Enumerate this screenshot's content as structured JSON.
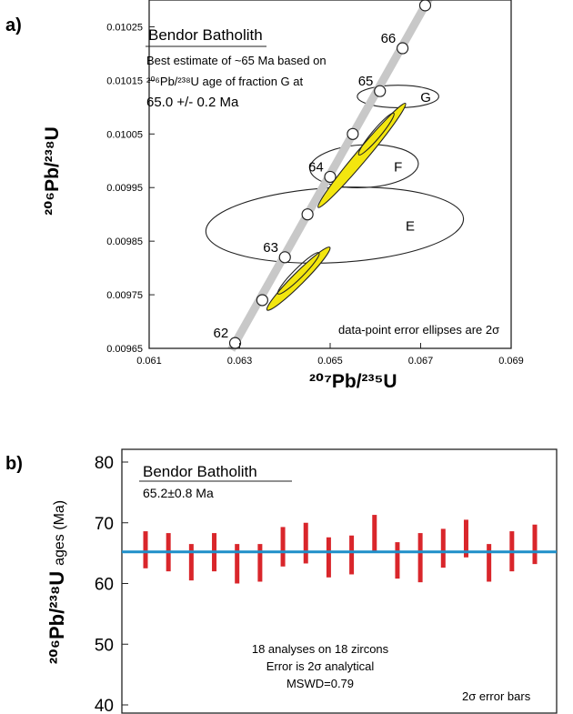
{
  "chart_data": [
    {
      "type": "scatter",
      "panel_label": "a)",
      "title": "Bendor Batholith",
      "annotation_lines": [
        "Best estimate of ~65 Ma based on",
        "²⁰⁶Pb/²³⁸U age of fraction G at",
        "65.0 +/- 0.2 Ma"
      ],
      "note": "data-point error ellipses are 2σ",
      "xlabel": "²⁰⁷Pb/²³⁵U",
      "ylabel": "²⁰⁶Pb/²³⁸U",
      "xlim": [
        0.061,
        0.069
      ],
      "ylim": [
        0.00965,
        0.0103
      ],
      "x_ticks": [
        0.061,
        0.063,
        0.065,
        0.067,
        0.069
      ],
      "x_tick_labels": [
        "0.061",
        "0.063",
        "0.065",
        "0.067",
        "0.069"
      ],
      "y_ticks": [
        0.00965,
        0.00975,
        0.00985,
        0.00995,
        0.01005,
        0.01015,
        0.01025
      ],
      "y_tick_labels": [
        "0.00965",
        "0.00975",
        "0.00985",
        "0.00995",
        "0.01005",
        "0.01015",
        "0.01025"
      ],
      "concordia_color": "#c8c8c8",
      "concordia_points": [
        {
          "x": 0.0629,
          "y": 0.00966,
          "label": "62"
        },
        {
          "x": 0.0635,
          "y": 0.00974,
          "label": ""
        },
        {
          "x": 0.064,
          "y": 0.00982,
          "label": "63"
        },
        {
          "x": 0.0645,
          "y": 0.0099,
          "label": ""
        },
        {
          "x": 0.065,
          "y": 0.00997,
          "label": "64"
        },
        {
          "x": 0.0655,
          "y": 0.01005,
          "label": ""
        },
        {
          "x": 0.0661,
          "y": 0.01013,
          "label": "65"
        },
        {
          "x": 0.0666,
          "y": 0.01021,
          "label": "66"
        },
        {
          "x": 0.0671,
          "y": 0.01029,
          "label": ""
        }
      ],
      "ellipses": [
        {
          "label": "G",
          "cx": 0.0665,
          "cy": 0.01012,
          "rx": 0.0009,
          "ry": 2.1e-05,
          "angle": 0,
          "fill": "none"
        },
        {
          "label": "F",
          "cx": 0.06575,
          "cy": 0.00999,
          "rx": 0.0012,
          "ry": 4e-05,
          "angle": -3,
          "fill": "none"
        },
        {
          "label": "E",
          "cx": 0.0651,
          "cy": 0.00988,
          "rx": 0.00285,
          "ry": 7e-05,
          "angle": -3,
          "fill": "none"
        },
        {
          "label": "",
          "cx": 0.0657,
          "cy": 0.01001,
          "rx": 0.0015,
          "ry": 1.1e-05,
          "angle": -50,
          "fill": "#f3e60f"
        },
        {
          "label": "",
          "cx": 0.0643,
          "cy": 0.00978,
          "rx": 0.00098,
          "ry": 1.1e-05,
          "angle": -45,
          "fill": "#f3e60f"
        },
        {
          "label": "",
          "cx": 0.0643,
          "cy": 0.00979,
          "rx": 0.00064,
          "ry": 9e-06,
          "angle": -45,
          "fill": "none"
        },
        {
          "label": "",
          "cx": 0.06602,
          "cy": 0.01005,
          "rx": 0.0006,
          "ry": 8e-06,
          "angle": -50,
          "fill": "none"
        }
      ]
    },
    {
      "type": "bar",
      "panel_label": "b)",
      "title": "Bendor Batholith",
      "subtitle": "65.2±0.8 Ma",
      "notes": [
        "18 analyses on 18 zircons",
        "Error is 2σ analytical",
        "MSWD=0.79"
      ],
      "error_bar_note": "2σ error bars",
      "ylabel_main": "²⁰⁶Pb/²³⁸U",
      "ylabel_suffix": "ages (Ma)",
      "ylim": [
        40,
        80
      ],
      "y_ticks": [
        40,
        50,
        60,
        70,
        80
      ],
      "y_tick_labels": [
        "40",
        "50",
        "60",
        "70",
        "80"
      ],
      "mean": 65.2,
      "mean_color": "#1f8fc9",
      "bar_color": "#d9262b",
      "error_bars": [
        {
          "low": 62.5,
          "high": 68.6
        },
        {
          "low": 62.0,
          "high": 68.3
        },
        {
          "low": 60.5,
          "high": 66.5
        },
        {
          "low": 62.0,
          "high": 68.3
        },
        {
          "low": 60.0,
          "high": 66.5
        },
        {
          "low": 60.3,
          "high": 66.5
        },
        {
          "low": 62.8,
          "high": 69.3
        },
        {
          "low": 63.3,
          "high": 70.0
        },
        {
          "low": 61.0,
          "high": 67.6
        },
        {
          "low": 61.5,
          "high": 67.9
        },
        {
          "low": 65.3,
          "high": 71.3
        },
        {
          "low": 60.8,
          "high": 66.8
        },
        {
          "low": 60.2,
          "high": 68.3
        },
        {
          "low": 62.6,
          "high": 69.0
        },
        {
          "low": 64.3,
          "high": 70.5
        },
        {
          "low": 60.3,
          "high": 66.5
        },
        {
          "low": 62.0,
          "high": 68.6
        },
        {
          "low": 63.2,
          "high": 69.7
        }
      ]
    }
  ]
}
